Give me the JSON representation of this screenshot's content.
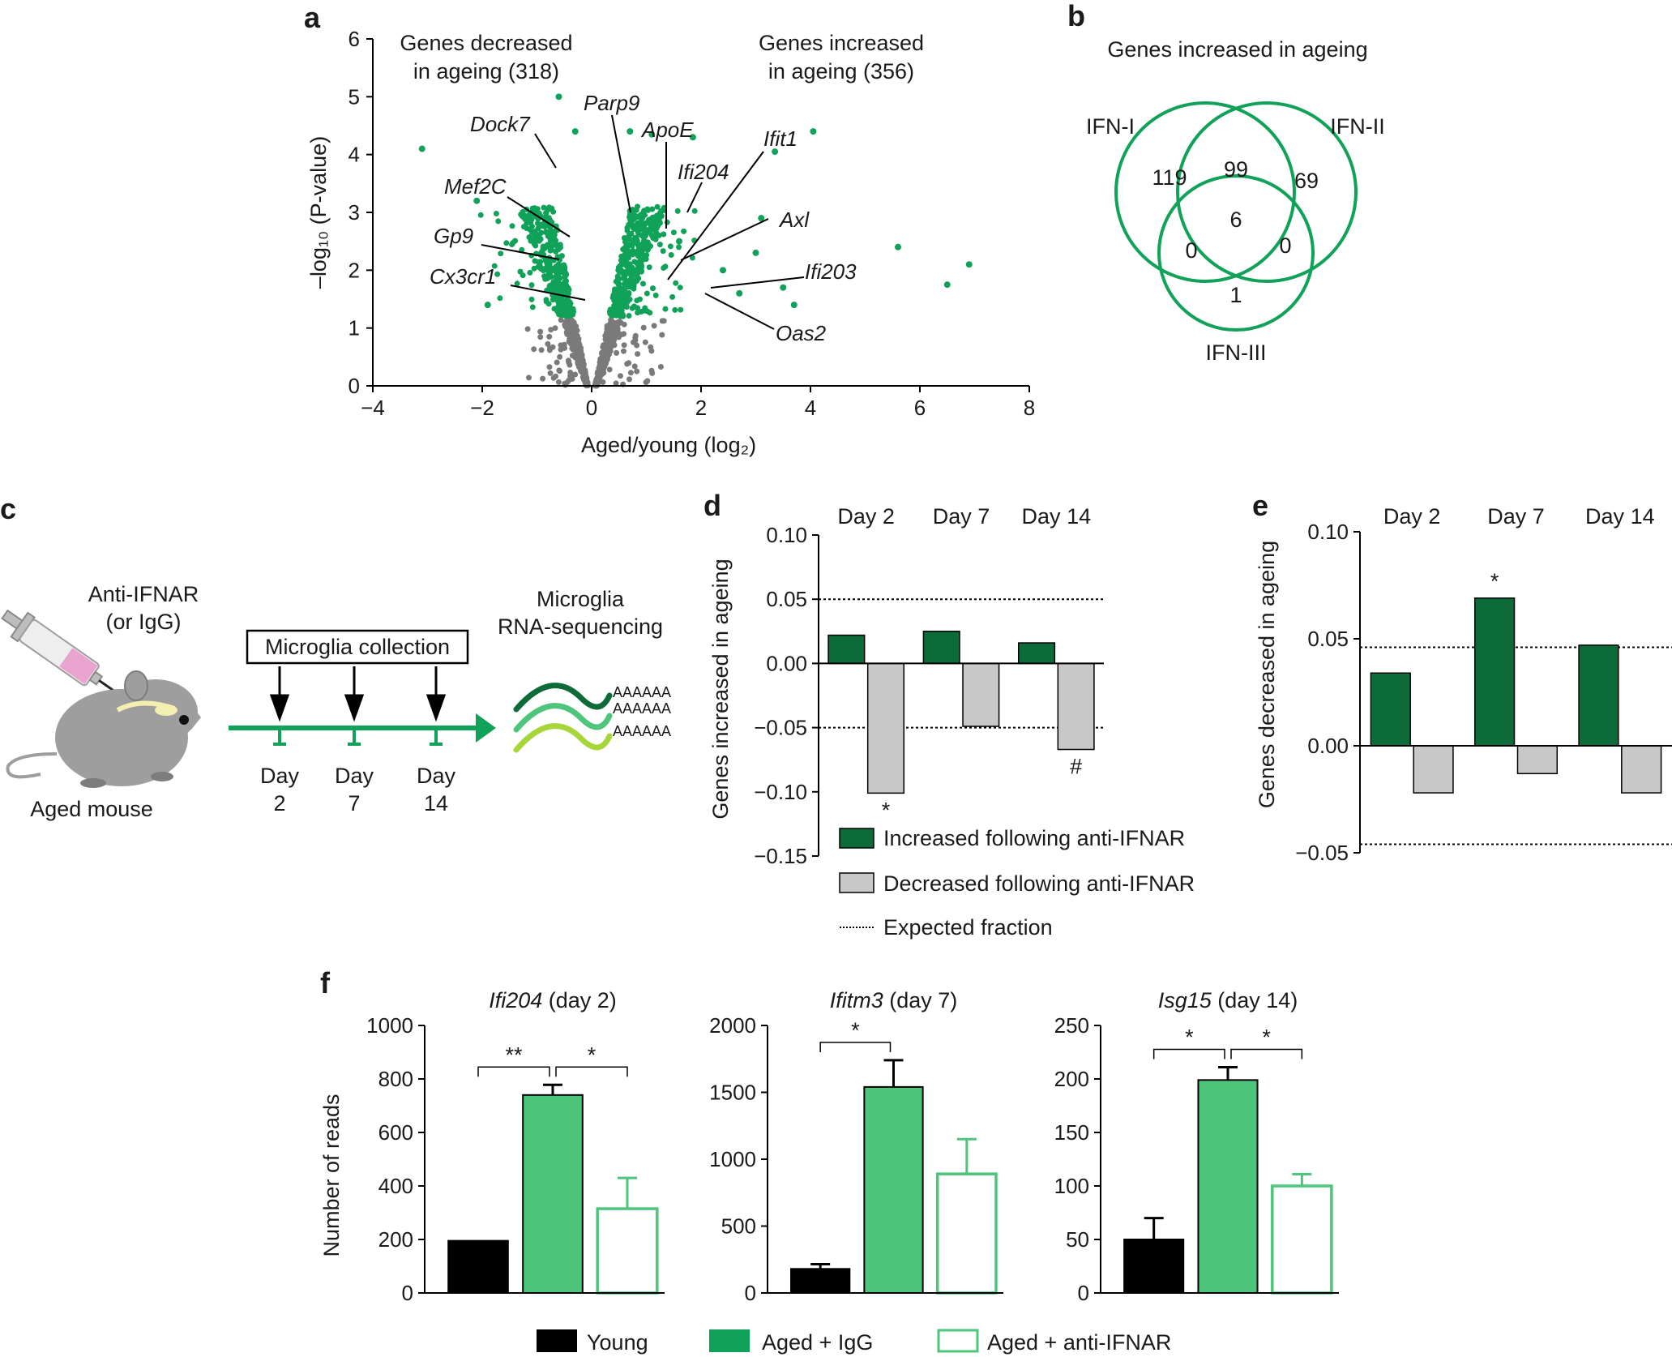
{
  "colors": {
    "green": "#10a258",
    "dark_green": "#0d6b3a",
    "light_green": "#4dc57a",
    "grey": "#7a7a7a",
    "light_grey": "#c8c8c8",
    "black": "#000000",
    "pink": "#e9a3cf"
  },
  "panels": {
    "a": "a",
    "b": "b",
    "c": "c",
    "d": "d",
    "e": "e",
    "f": "f"
  },
  "chart_data": [
    {
      "panel": "a",
      "type": "scatter",
      "xlabel": "Aged/young (log₂)",
      "ylabel": "–log₁₀ (P-value)",
      "xlim": [
        -4,
        8
      ],
      "ylim": [
        0,
        6
      ],
      "xticks": [
        "−4",
        "−2",
        "0",
        "2",
        "4",
        "6",
        "8"
      ],
      "yticks": [
        "0",
        "1",
        "2",
        "3",
        "4",
        "5",
        "6"
      ],
      "annotation_left": [
        "Genes decreased",
        "in ageing (318)"
      ],
      "annotation_right": [
        "Genes increased",
        "in ageing (356)"
      ],
      "significance_threshold": 1.2,
      "highlighted_points": [
        {
          "x": -3.1,
          "y": 4.1
        },
        {
          "x": -2.1,
          "y": 3.2
        },
        {
          "x": -1.9,
          "y": 1.4
        },
        {
          "x": -0.6,
          "y": 5.0
        },
        {
          "x": -0.3,
          "y": 4.4
        },
        {
          "x": 0.7,
          "y": 4.4
        },
        {
          "x": 1.1,
          "y": 4.35
        },
        {
          "x": 1.85,
          "y": 4.3
        },
        {
          "x": 3.35,
          "y": 4.05
        },
        {
          "x": 4.05,
          "y": 4.4
        },
        {
          "x": 3.1,
          "y": 2.9
        },
        {
          "x": 3.0,
          "y": 2.3
        },
        {
          "x": 3.5,
          "y": 1.7
        },
        {
          "x": 3.7,
          "y": 1.4
        },
        {
          "x": 5.6,
          "y": 2.4
        },
        {
          "x": 6.5,
          "y": 1.75
        },
        {
          "x": 6.9,
          "y": 2.1
        },
        {
          "x": 2.4,
          "y": 2.0
        },
        {
          "x": 2.7,
          "y": 1.6
        },
        {
          "x": 1.6,
          "y": 2.5
        }
      ],
      "gene_labels": [
        "Dock7",
        "Parp9",
        "ApoE",
        "Ifit1",
        "Mef2C",
        "Ifi204",
        "Axl",
        "Gp9",
        "Ifi203",
        "Cx3cr1",
        "Oas2"
      ]
    },
    {
      "panel": "b",
      "type": "venn",
      "title": "Genes increased in ageing",
      "sets": [
        "IFN-I",
        "IFN-II",
        "IFN-III"
      ],
      "regions": {
        "only_I": "119",
        "I_II": "99",
        "only_II": "69",
        "all_three": "6",
        "I_III": "0",
        "II_III": "0",
        "only_III": "1"
      }
    },
    {
      "panel": "d",
      "type": "bar",
      "ylabel": "Genes increased in ageing",
      "categories": [
        "Day 2",
        "Day 7",
        "Day 14"
      ],
      "series": [
        {
          "name": "Increased following anti-IFNAR",
          "values": [
            0.022,
            0.025,
            0.016
          ]
        },
        {
          "name": "Decreased following anti-IFNAR",
          "values": [
            -0.101,
            -0.049,
            -0.067
          ]
        }
      ],
      "expected_fraction": [
        0.05,
        -0.05
      ],
      "ylim": [
        -0.15,
        0.1
      ],
      "yticks": [
        "−0.15",
        "−0.10",
        "−0.05",
        "0.00",
        "0.05",
        "0.10"
      ],
      "marks": [
        {
          "category": "Day 2",
          "text": "*"
        },
        {
          "category": "Day 14",
          "text": "#"
        }
      ],
      "legend": [
        "Increased following anti-IFNAR",
        "Decreased following anti-IFNAR",
        "Expected fraction"
      ]
    },
    {
      "panel": "e",
      "type": "bar",
      "ylabel": "Genes decreased in ageing",
      "categories": [
        "Day 2",
        "Day 7",
        "Day 14"
      ],
      "series": [
        {
          "name": "Increased following anti-IFNAR",
          "values": [
            0.034,
            0.069,
            0.047
          ]
        },
        {
          "name": "Decreased following anti-IFNAR",
          "values": [
            -0.022,
            -0.013,
            -0.022
          ]
        }
      ],
      "expected_fraction": [
        0.046,
        -0.046
      ],
      "ylim": [
        -0.05,
        0.1
      ],
      "yticks": [
        "−0.05",
        "0.00",
        "0.05",
        "0.10"
      ],
      "marks": [
        {
          "category": "Day 7",
          "text": "*"
        }
      ]
    },
    {
      "panel": "f",
      "type": "bar",
      "ylabel": "Number of reads",
      "subplots": [
        {
          "title_gene": "Ifi204",
          "title_rest": " (day 2)",
          "ylim": [
            0,
            1000
          ],
          "yticks": [
            "0",
            "200",
            "400",
            "600",
            "800",
            "1000"
          ],
          "values": [
            195,
            740,
            315
          ],
          "errors": [
            0,
            38,
            115
          ],
          "sig": [
            {
              "pair": [
                0,
                1
              ],
              "text": "**"
            },
            {
              "pair": [
                1,
                2
              ],
              "text": "*"
            }
          ]
        },
        {
          "title_gene": "Ifitm3",
          "title_rest": " (day 7)",
          "ylim": [
            0,
            2000
          ],
          "yticks": [
            "0",
            "500",
            "1000",
            "1500",
            "2000"
          ],
          "values": [
            180,
            1540,
            890
          ],
          "errors": [
            35,
            200,
            260
          ],
          "sig": [
            {
              "pair": [
                0,
                1
              ],
              "text": "*"
            }
          ]
        },
        {
          "title_gene": "Isg15",
          "title_rest": " (day 14)",
          "ylim": [
            0,
            250
          ],
          "yticks": [
            "0",
            "50",
            "100",
            "150",
            "200",
            "250"
          ],
          "values": [
            50,
            199,
            100
          ],
          "errors": [
            20,
            12,
            11
          ],
          "sig": [
            {
              "pair": [
                0,
                1
              ],
              "text": "*"
            },
            {
              "pair": [
                1,
                2
              ],
              "text": "*"
            }
          ]
        }
      ],
      "legend": [
        "Young",
        "Aged + IgG",
        "Aged + anti-IFNAR"
      ]
    }
  ],
  "panel_c": {
    "treatment": [
      "Anti-IFNAR",
      "(or IgG)"
    ],
    "subject": "Aged mouse",
    "collection": "Microglia collection",
    "sequencing": [
      "Microglia",
      "RNA-sequencing"
    ],
    "days": [
      [
        "Day",
        "2"
      ],
      [
        "Day",
        "7"
      ],
      [
        "Day",
        "14"
      ]
    ],
    "poly_a": "AAAAAA"
  }
}
